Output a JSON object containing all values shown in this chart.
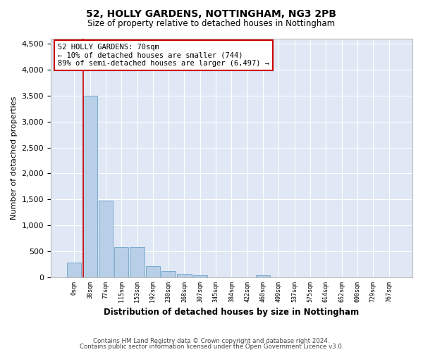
{
  "title1": "52, HOLLY GARDENS, NOTTINGHAM, NG3 2PB",
  "title2": "Size of property relative to detached houses in Nottingham",
  "xlabel": "Distribution of detached houses by size in Nottingham",
  "ylabel": "Number of detached properties",
  "bar_color": "#b8cfe8",
  "bar_edge_color": "#7aaace",
  "bg_color": "#dfe8f4",
  "grid_color": "#ffffff",
  "annotation_line_color": "#cc0000",
  "annotation_box_color": "#cc0000",
  "annotation_text": "52 HOLLY GARDENS: 70sqm\n← 10% of detached houses are smaller (744)\n89% of semi-detached houses are larger (6,497) →",
  "bins": [
    "0sqm",
    "38sqm",
    "77sqm",
    "115sqm",
    "153sqm",
    "192sqm",
    "230sqm",
    "268sqm",
    "307sqm",
    "345sqm",
    "384sqm",
    "422sqm",
    "460sqm",
    "499sqm",
    "537sqm",
    "575sqm",
    "614sqm",
    "652sqm",
    "690sqm",
    "729sqm",
    "767sqm"
  ],
  "values": [
    280,
    3500,
    1480,
    575,
    575,
    220,
    120,
    65,
    40,
    0,
    0,
    0,
    40,
    0,
    0,
    0,
    0,
    0,
    0,
    0,
    0
  ],
  "ylim": [
    0,
    4600
  ],
  "yticks": [
    0,
    500,
    1000,
    1500,
    2000,
    2500,
    3000,
    3500,
    4000,
    4500
  ],
  "footer1": "Contains HM Land Registry data © Crown copyright and database right 2024.",
  "footer2": "Contains public sector information licensed under the Open Government Licence v3.0."
}
